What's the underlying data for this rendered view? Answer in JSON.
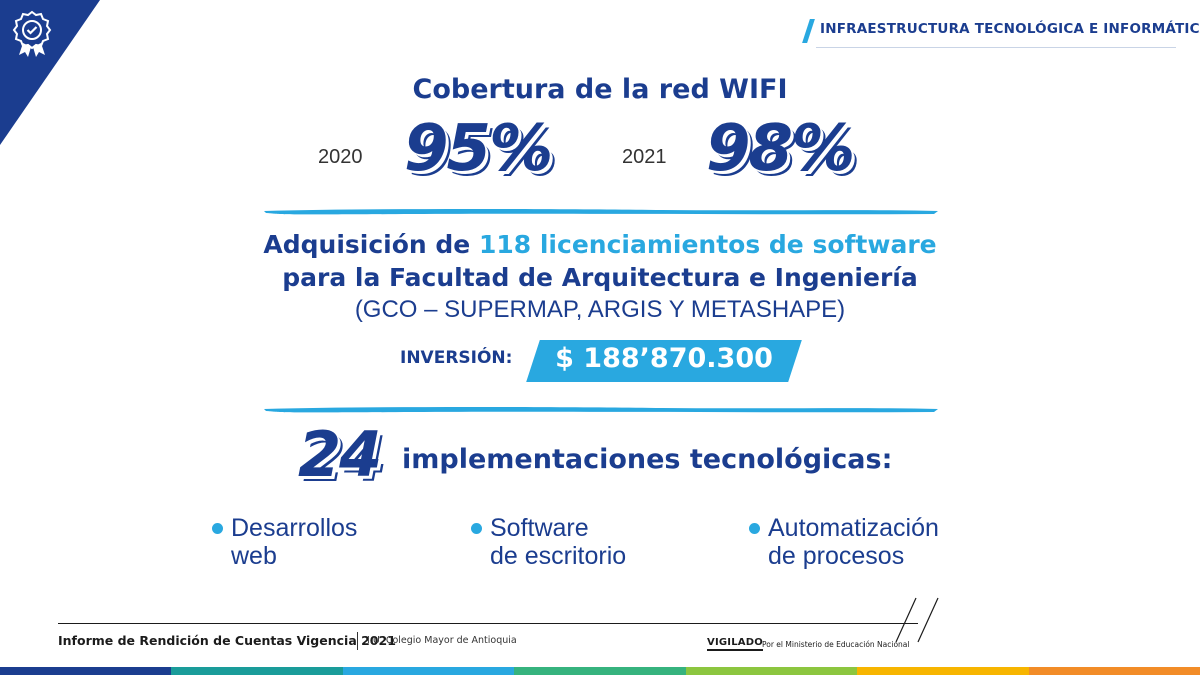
{
  "header": {
    "section_title": "INFRAESTRUCTURA TECNOLÓGICA E INFORMÁTICA",
    "badge_icon": "award-badge-icon"
  },
  "wifi": {
    "title": "Cobertura de la red WIFI",
    "stats": [
      {
        "year": "2020",
        "value": "95%"
      },
      {
        "year": "2021",
        "value": "98%"
      }
    ]
  },
  "software": {
    "line1_prefix": "Adquisición de ",
    "line1_highlight": "118 licenciamientos de software",
    "line2": "para la Facultad de Arquitectura e Ingeniería",
    "line3": "(GCO – SUPERMAP, ARGIS Y METASHAPE)",
    "investment_label": "INVERSIÓN:",
    "investment_value": "$ 188’870.300"
  },
  "implementations": {
    "count": "24",
    "label": "implementaciones tecnológicas:",
    "items": [
      {
        "line1": "Desarrollos",
        "line2": "web"
      },
      {
        "line1": "Software",
        "line2": "de escritorio"
      },
      {
        "line1": "Automatización",
        "line2": "de procesos"
      }
    ]
  },
  "footer": {
    "report": "Informe de Rendición de Cuentas Vigencia 2021",
    "school": "I.U. Colegio Mayor de Antioquia",
    "vigilado": "VIGILADO",
    "vigilado_sub": "Por el Ministerio de Educación Nacional"
  },
  "colors": {
    "navy": "#1b3d8f",
    "accent": "#29a8e0",
    "footer_bar": [
      "#1b3d8f",
      "#1a9c9a",
      "#29a8e0",
      "#36b37e",
      "#8cc63f",
      "#f7b500",
      "#f28c28"
    ]
  }
}
